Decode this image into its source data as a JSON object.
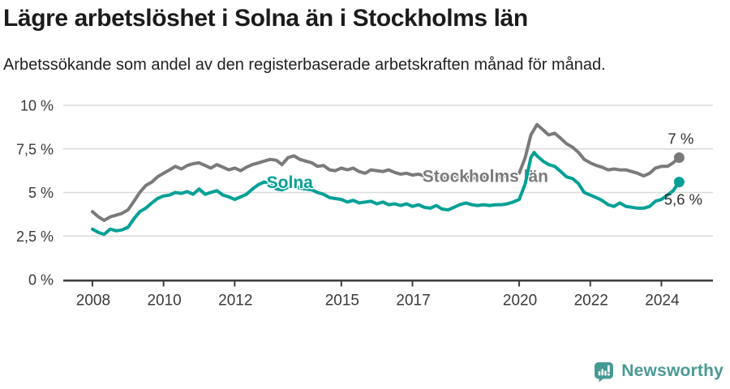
{
  "title": "Lägre arbetslöshet i Solna än i Stockholms län",
  "subtitle": "Arbetssökande som andel av den registerbaserade arbetskraften månad för månad.",
  "brand": {
    "name": "Newsworthy"
  },
  "colors": {
    "solna": "#00a096",
    "stockholm": "#7a7a7a",
    "title_text": "#1b1b1b",
    "axis_text": "#3a3a3a",
    "value_label_text": "#2f2f2f",
    "gridline": "#dadada",
    "axis_line": "#3f3f3f",
    "brand_teal": "#4a9a93",
    "brand_icon_teal": "#459a92",
    "background": "#ffffff"
  },
  "chart_data": {
    "type": "line",
    "title": "Lägre arbetslöshet i Solna än i Stockholms län",
    "subtitle": "Arbetssökande som andel av den registerbaserade arbetskraften månad för månad.",
    "unit": "%",
    "grid": "horizontal",
    "legend_position": "inline-labels",
    "xlim": [
      2007.18,
      2025.45
    ],
    "ylim": [
      0,
      10
    ],
    "y_ticks": [
      {
        "value": 0,
        "label": "0 %"
      },
      {
        "value": 2.5,
        "label": "2,5 %"
      },
      {
        "value": 5,
        "label": "5 %"
      },
      {
        "value": 7.5,
        "label": "7,5 %"
      },
      {
        "value": 10,
        "label": "10 %"
      }
    ],
    "x_ticks": [
      {
        "value": 2008,
        "label": "2008"
      },
      {
        "value": 2010,
        "label": "2010"
      },
      {
        "value": 2012,
        "label": "2012"
      },
      {
        "value": 2015,
        "label": "2015"
      },
      {
        "value": 2017,
        "label": "2017"
      },
      {
        "value": 2020,
        "label": "2020"
      },
      {
        "value": 2022,
        "label": "2022"
      },
      {
        "value": 2024,
        "label": "2024"
      }
    ],
    "series": [
      {
        "name": "Stockholms län",
        "color": "#7a7a7a",
        "label_anchor": {
          "x": 2019.05,
          "y": 5.6
        },
        "end_value": 7.0,
        "value_label": {
          "text": "7 %",
          "dx": 2,
          "dy": -17
        },
        "points": [
          [
            2008,
            3.9
          ],
          [
            2008.17,
            3.6
          ],
          [
            2008.33,
            3.4
          ],
          [
            2008.5,
            3.6
          ],
          [
            2008.67,
            3.7
          ],
          [
            2008.83,
            3.8
          ],
          [
            2009,
            4.0
          ],
          [
            2009.17,
            4.5
          ],
          [
            2009.33,
            5.0
          ],
          [
            2009.5,
            5.4
          ],
          [
            2009.67,
            5.6
          ],
          [
            2009.83,
            5.9
          ],
          [
            2010,
            6.1
          ],
          [
            2010.17,
            6.3
          ],
          [
            2010.33,
            6.5
          ],
          [
            2010.5,
            6.35
          ],
          [
            2010.67,
            6.55
          ],
          [
            2010.83,
            6.65
          ],
          [
            2011,
            6.7
          ],
          [
            2011.17,
            6.55
          ],
          [
            2011.33,
            6.4
          ],
          [
            2011.5,
            6.6
          ],
          [
            2011.67,
            6.45
          ],
          [
            2011.83,
            6.3
          ],
          [
            2012,
            6.4
          ],
          [
            2012.17,
            6.25
          ],
          [
            2012.33,
            6.45
          ],
          [
            2012.5,
            6.6
          ],
          [
            2012.67,
            6.7
          ],
          [
            2012.83,
            6.8
          ],
          [
            2013,
            6.9
          ],
          [
            2013.17,
            6.85
          ],
          [
            2013.33,
            6.6
          ],
          [
            2013.5,
            7.0
          ],
          [
            2013.67,
            7.1
          ],
          [
            2013.83,
            6.9
          ],
          [
            2014,
            6.8
          ],
          [
            2014.17,
            6.7
          ],
          [
            2014.33,
            6.5
          ],
          [
            2014.5,
            6.55
          ],
          [
            2014.67,
            6.3
          ],
          [
            2014.83,
            6.25
          ],
          [
            2015,
            6.4
          ],
          [
            2015.17,
            6.3
          ],
          [
            2015.33,
            6.4
          ],
          [
            2015.5,
            6.2
          ],
          [
            2015.67,
            6.1
          ],
          [
            2015.83,
            6.3
          ],
          [
            2016,
            6.25
          ],
          [
            2016.17,
            6.2
          ],
          [
            2016.33,
            6.3
          ],
          [
            2016.5,
            6.15
          ],
          [
            2016.67,
            6.05
          ],
          [
            2016.83,
            6.1
          ],
          [
            2017,
            6.0
          ],
          [
            2017.17,
            6.05
          ],
          [
            2017.33,
            5.95
          ],
          [
            2017.5,
            5.9
          ],
          [
            2017.67,
            6.0
          ],
          [
            2017.83,
            5.85
          ],
          [
            2018,
            5.8
          ],
          [
            2018.17,
            5.95
          ],
          [
            2018.33,
            5.85
          ],
          [
            2018.5,
            5.9
          ],
          [
            2018.67,
            5.8
          ],
          [
            2018.83,
            5.85
          ],
          [
            2019,
            5.9
          ],
          [
            2019.17,
            5.8
          ],
          [
            2019.33,
            5.85
          ],
          [
            2019.5,
            5.9
          ],
          [
            2019.67,
            5.95
          ],
          [
            2019.83,
            6.0
          ],
          [
            2020,
            6.1
          ],
          [
            2020.17,
            7.0
          ],
          [
            2020.33,
            8.3
          ],
          [
            2020.5,
            8.9
          ],
          [
            2020.67,
            8.6
          ],
          [
            2020.83,
            8.3
          ],
          [
            2021,
            8.4
          ],
          [
            2021.17,
            8.1
          ],
          [
            2021.33,
            7.8
          ],
          [
            2021.5,
            7.6
          ],
          [
            2021.67,
            7.3
          ],
          [
            2021.83,
            6.9
          ],
          [
            2022,
            6.7
          ],
          [
            2022.17,
            6.55
          ],
          [
            2022.33,
            6.45
          ],
          [
            2022.5,
            6.3
          ],
          [
            2022.67,
            6.35
          ],
          [
            2022.83,
            6.3
          ],
          [
            2023,
            6.3
          ],
          [
            2023.17,
            6.2
          ],
          [
            2023.33,
            6.1
          ],
          [
            2023.5,
            5.95
          ],
          [
            2023.67,
            6.1
          ],
          [
            2023.83,
            6.4
          ],
          [
            2024,
            6.5
          ],
          [
            2024.17,
            6.5
          ],
          [
            2024.33,
            6.7
          ],
          [
            2024.5,
            7.0
          ]
        ]
      },
      {
        "name": "Solna",
        "color": "#00a096",
        "label_anchor": {
          "x": 2013.55,
          "y": 5.26
        },
        "end_value": 5.6,
        "value_label": {
          "text": "5,6 %",
          "dx": 5,
          "dy": 28
        },
        "points": [
          [
            2008,
            2.9
          ],
          [
            2008.17,
            2.7
          ],
          [
            2008.33,
            2.6
          ],
          [
            2008.5,
            2.9
          ],
          [
            2008.67,
            2.8
          ],
          [
            2008.83,
            2.85
          ],
          [
            2009,
            3.0
          ],
          [
            2009.17,
            3.5
          ],
          [
            2009.33,
            3.9
          ],
          [
            2009.5,
            4.1
          ],
          [
            2009.67,
            4.4
          ],
          [
            2009.83,
            4.65
          ],
          [
            2010,
            4.8
          ],
          [
            2010.17,
            4.85
          ],
          [
            2010.33,
            5.0
          ],
          [
            2010.5,
            4.95
          ],
          [
            2010.67,
            5.05
          ],
          [
            2010.83,
            4.9
          ],
          [
            2011,
            5.2
          ],
          [
            2011.17,
            4.9
          ],
          [
            2011.33,
            5.0
          ],
          [
            2011.5,
            5.1
          ],
          [
            2011.67,
            4.85
          ],
          [
            2011.83,
            4.75
          ],
          [
            2012,
            4.6
          ],
          [
            2012.17,
            4.75
          ],
          [
            2012.33,
            4.9
          ],
          [
            2012.5,
            5.2
          ],
          [
            2012.67,
            5.45
          ],
          [
            2012.83,
            5.6
          ],
          [
            2013,
            5.5
          ],
          [
            2013.17,
            5.2
          ],
          [
            2013.33,
            5.15
          ],
          [
            2013.5,
            5.3
          ],
          [
            2013.67,
            5.35
          ],
          [
            2013.83,
            5.25
          ],
          [
            2014,
            5.2
          ],
          [
            2014.17,
            5.15
          ],
          [
            2014.33,
            5.0
          ],
          [
            2014.5,
            4.9
          ],
          [
            2014.67,
            4.7
          ],
          [
            2014.83,
            4.65
          ],
          [
            2015,
            4.6
          ],
          [
            2015.17,
            4.45
          ],
          [
            2015.33,
            4.55
          ],
          [
            2015.5,
            4.4
          ],
          [
            2015.67,
            4.45
          ],
          [
            2015.83,
            4.5
          ],
          [
            2016,
            4.35
          ],
          [
            2016.17,
            4.45
          ],
          [
            2016.33,
            4.3
          ],
          [
            2016.5,
            4.35
          ],
          [
            2016.67,
            4.25
          ],
          [
            2016.83,
            4.35
          ],
          [
            2017,
            4.2
          ],
          [
            2017.17,
            4.3
          ],
          [
            2017.33,
            4.15
          ],
          [
            2017.5,
            4.1
          ],
          [
            2017.67,
            4.25
          ],
          [
            2017.83,
            4.05
          ],
          [
            2018,
            4.0
          ],
          [
            2018.17,
            4.15
          ],
          [
            2018.33,
            4.3
          ],
          [
            2018.5,
            4.4
          ],
          [
            2018.67,
            4.3
          ],
          [
            2018.83,
            4.25
          ],
          [
            2019,
            4.3
          ],
          [
            2019.17,
            4.25
          ],
          [
            2019.33,
            4.3
          ],
          [
            2019.5,
            4.3
          ],
          [
            2019.67,
            4.35
          ],
          [
            2019.83,
            4.45
          ],
          [
            2020,
            4.6
          ],
          [
            2020.17,
            5.5
          ],
          [
            2020.33,
            7.0
          ],
          [
            2020.42,
            7.3
          ],
          [
            2020.5,
            7.1
          ],
          [
            2020.67,
            6.8
          ],
          [
            2020.83,
            6.6
          ],
          [
            2021,
            6.5
          ],
          [
            2021.17,
            6.2
          ],
          [
            2021.33,
            5.9
          ],
          [
            2021.5,
            5.8
          ],
          [
            2021.67,
            5.5
          ],
          [
            2021.83,
            5.0
          ],
          [
            2022,
            4.85
          ],
          [
            2022.17,
            4.7
          ],
          [
            2022.33,
            4.55
          ],
          [
            2022.5,
            4.3
          ],
          [
            2022.67,
            4.2
          ],
          [
            2022.83,
            4.4
          ],
          [
            2023,
            4.2
          ],
          [
            2023.17,
            4.15
          ],
          [
            2023.33,
            4.1
          ],
          [
            2023.5,
            4.1
          ],
          [
            2023.67,
            4.2
          ],
          [
            2023.83,
            4.5
          ],
          [
            2024,
            4.6
          ],
          [
            2024.17,
            4.85
          ],
          [
            2024.33,
            5.1
          ],
          [
            2024.5,
            5.6
          ]
        ]
      }
    ]
  }
}
